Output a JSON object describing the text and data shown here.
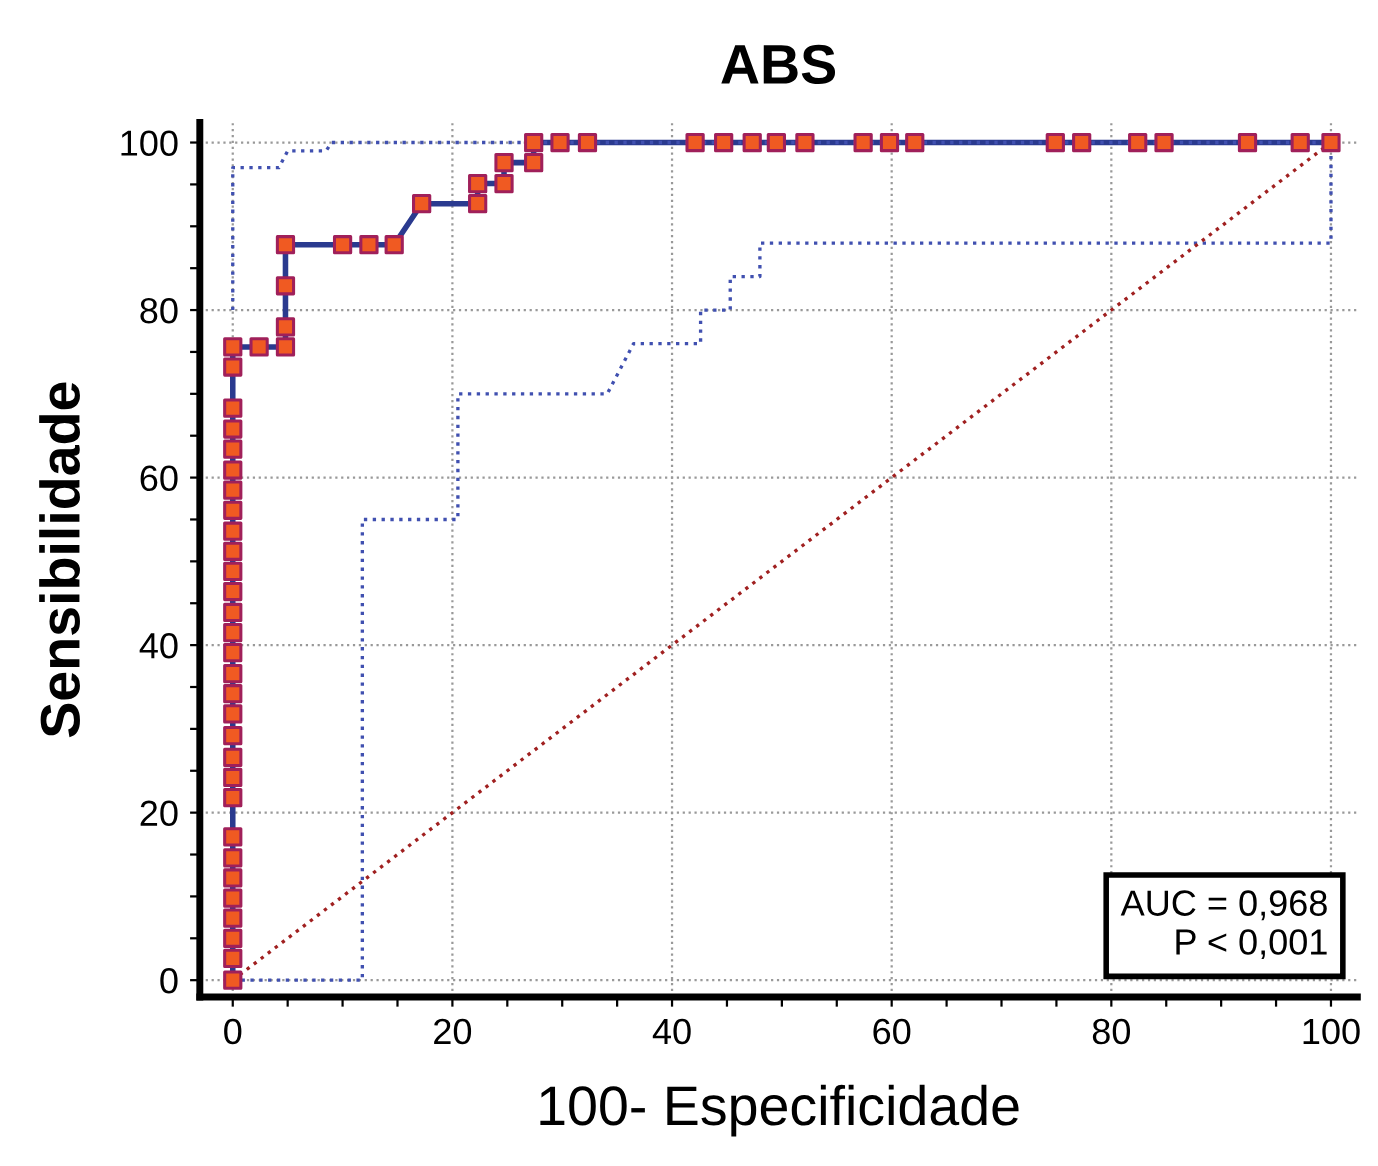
{
  "chart_data": {
    "type": "line",
    "title": "ABS",
    "xlabel": "100- Especificidade",
    "ylabel": "Sensibilidade",
    "series": [
      {
        "color": "#2a3a8f",
        "marker": "square",
        "line_style": "solid",
        "colors": [
          "#f05a22",
          "#f05a22",
          "#f05a22",
          "#f05a22",
          "#f05a22",
          "#f05a22",
          "#f05a22",
          "#f05a22",
          "#f05a22",
          "#f05a22",
          "#f05a22",
          "#f05a22",
          "#f05a22",
          "#f05a22",
          "#f05a22",
          "#f05a22",
          "#f05a22",
          "#f05a22",
          "#f05a22",
          "#f05a22",
          "#f05a22",
          "#f05a22",
          "#f05a22",
          "#f05a22",
          "#f05a22",
          "#f05a22",
          "#f05a22",
          "#f05a22",
          "#f05a22",
          "#f05a22",
          "#f05a22",
          "#f05a22",
          "#f05a22",
          "#f05a22",
          "#f05a22",
          "#f05a22",
          "#f05a22",
          "#f05a22",
          "#f05a22",
          "#f05a22",
          "#f05a22",
          "#f05a22",
          "#f05a22",
          "#f05a22",
          "#f05a22",
          "#f05a22",
          "#f05a22",
          "#f05a22",
          "#f05a22",
          "#f05a22",
          "#f05a22",
          "#f05a22",
          "#f05a22",
          "#f05a22",
          "#f05a22",
          "#f05a22",
          "#f05a22",
          "#f05a22",
          "#f05a22",
          "#f05a22",
          "#f05a22",
          "#f05a22"
        ],
        "x": [
          0,
          0,
          0,
          0,
          0,
          0,
          0,
          0,
          0,
          0,
          0,
          0,
          0,
          0,
          0,
          0,
          0,
          0,
          0,
          0,
          0,
          0,
          0,
          0,
          0,
          0,
          0,
          0,
          0,
          0,
          2.4,
          4.8,
          4.8,
          4.8,
          4.8,
          10,
          12.4,
          14.7,
          17.2,
          22.3,
          22.3,
          24.7,
          24.7,
          27.4,
          27.4,
          29.8,
          32.3,
          42.1,
          44.7,
          47.3,
          49.5,
          52.1,
          57.4,
          59.8,
          62.1,
          74.9,
          77.3,
          82.4,
          84.8,
          92.4,
          97.2,
          100
        ],
        "values": [
          0,
          2.6,
          5,
          7.4,
          9.8,
          12.2,
          14.6,
          17.1,
          21.8,
          24.2,
          26.6,
          29.2,
          31.8,
          34.2,
          36.6,
          39.1,
          41.5,
          43.9,
          46.4,
          48.8,
          51.2,
          53.6,
          56.1,
          58.5,
          60.9,
          63.4,
          65.8,
          68.3,
          73.2,
          75.6,
          75.6,
          75.6,
          78,
          82.9,
          87.8,
          87.8,
          87.8,
          87.8,
          92.7,
          92.7,
          95.1,
          95.1,
          97.6,
          97.6,
          100,
          100,
          100,
          100,
          100,
          100,
          100,
          100,
          100,
          100,
          100,
          100,
          100,
          100,
          100,
          100,
          100,
          100
        ]
      },
      {
        "color": "#4050b0",
        "marker": "none",
        "line_style": "dotted",
        "x": [
          0,
          0,
          4.2,
          5,
          8.5,
          9,
          100
        ],
        "values": [
          80,
          97,
          97,
          99,
          99,
          100,
          100
        ]
      },
      {
        "color": "#4050b0",
        "marker": "none",
        "line_style": "dotted",
        "x": [
          0,
          11.8,
          11.8,
          20.5,
          20.5,
          34.1,
          36.5,
          42.6,
          42.6,
          45.3,
          45.3,
          48,
          48,
          100,
          100
        ],
        "values": [
          0,
          0,
          55,
          55,
          70,
          70,
          76,
          76,
          80,
          80,
          84,
          84,
          88,
          88,
          100
        ]
      },
      {
        "color": "#a02020",
        "marker": "none",
        "line_style": "dotted",
        "x": [
          0,
          100
        ],
        "values": [
          0,
          100
        ]
      }
    ],
    "xlim": [
      -3,
      102.4
    ],
    "ylim": [
      -2,
      102.4
    ],
    "xticks": [
      0,
      {
        "value": 5,
        "label": null
      },
      {
        "value": 10,
        "label": null
      },
      {
        "value": 15,
        "label": null
      },
      20,
      {
        "value": 25,
        "label": null
      },
      {
        "value": 30,
        "label": null
      },
      {
        "value": 35,
        "label": null
      },
      40,
      {
        "value": 45,
        "label": null
      },
      {
        "value": 50,
        "label": null
      },
      {
        "value": 55,
        "label": null
      },
      60,
      {
        "value": 65,
        "label": null
      },
      {
        "value": 70,
        "label": null
      },
      {
        "value": 75,
        "label": null
      },
      80,
      {
        "value": 85,
        "label": null
      },
      {
        "value": 90,
        "label": null
      },
      {
        "value": 95,
        "label": null
      },
      100
    ],
    "yticks": [
      0,
      {
        "value": 5,
        "label": null
      },
      {
        "value": 10,
        "label": null
      },
      {
        "value": 15,
        "label": null
      },
      20,
      {
        "value": 25,
        "label": null
      },
      {
        "value": 30,
        "label": null
      },
      {
        "value": 35,
        "label": null
      },
      40,
      {
        "value": 45,
        "label": null
      },
      {
        "value": 50,
        "label": null
      },
      {
        "value": 55,
        "label": null
      },
      60,
      {
        "value": 65,
        "label": null
      },
      {
        "value": 70,
        "label": null
      },
      {
        "value": 75,
        "label": null
      },
      80,
      {
        "value": 85,
        "label": null
      },
      {
        "value": 90,
        "label": null
      },
      {
        "value": 95,
        "label": null
      },
      100
    ],
    "grid": true,
    "annotations": [
      "AUC = 0,968\nP < 0,001"
    ]
  }
}
